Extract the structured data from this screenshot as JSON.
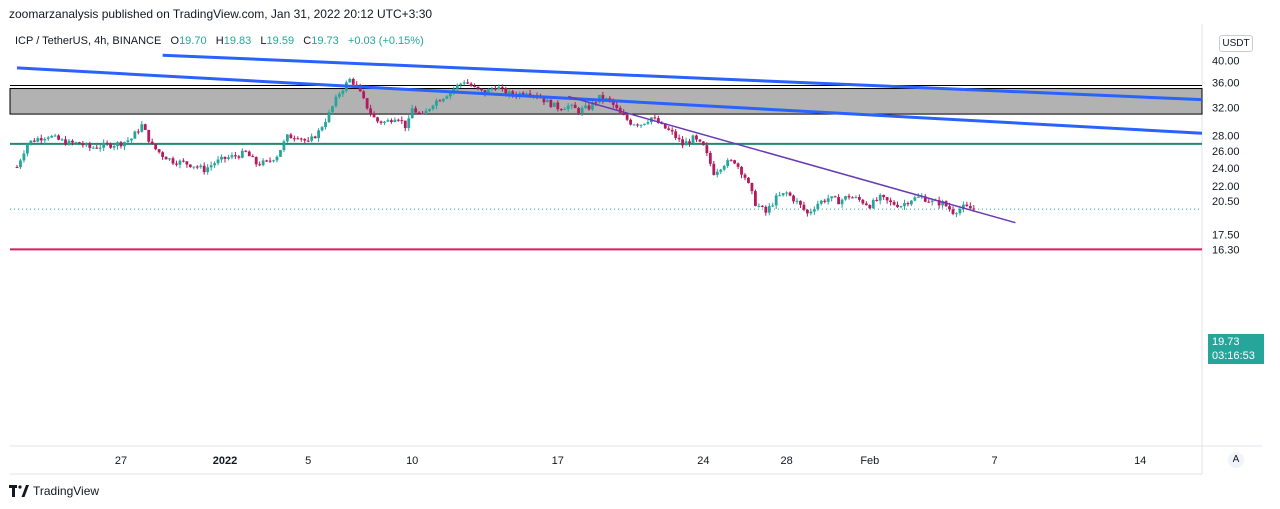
{
  "header": {
    "publisher": "zoomarzanalysis published on TradingView.com, Jan 31, 2022 20:12 UTC+3:30"
  },
  "legend": {
    "symbol": "ICP / TetherUS, 4h, BINANCE",
    "o_label": "O",
    "o": "19.70",
    "h_label": "H",
    "h": "19.83",
    "l_label": "L",
    "l": "19.59",
    "c_label": "C",
    "c": "19.73",
    "change": "+0.03 (+0.15%)"
  },
  "currency": "USDT",
  "last_price": {
    "price": "19.73",
    "countdown": "03:16:53"
  },
  "auto_scale": "A",
  "footer": {
    "brand": "TradingView"
  },
  "colors": {
    "up": "#26a69a",
    "down": "#b5195e",
    "channel": "#2962ff",
    "trendline": "#673ab7",
    "support": "#1f8a70",
    "bottom_line": "#d81b60",
    "zone_fill": "#b2b2b2"
  },
  "chart_data": {
    "type": "candlestick",
    "interval": "4h",
    "y_scale": "log",
    "ylim": [
      15.0,
      40.0
    ],
    "y_ticks": [
      "40.00",
      "36.00",
      "32.00",
      "28.00",
      "26.00",
      "24.00",
      "22.00",
      "20.50",
      "17.50",
      "16.30"
    ],
    "x_ticks": [
      {
        "label": "27",
        "date": "2021-12-27"
      },
      {
        "label": "2022",
        "date": "2022-01-01"
      },
      {
        "label": "5",
        "date": "2022-01-05"
      },
      {
        "label": "10",
        "date": "2022-01-10"
      },
      {
        "label": "17",
        "date": "2022-01-17"
      },
      {
        "label": "24",
        "date": "2022-01-24"
      },
      {
        "label": "28",
        "date": "2022-01-28"
      },
      {
        "label": "Feb",
        "date": "2022-02-01"
      },
      {
        "label": "7",
        "date": "2022-02-07"
      },
      {
        "label": "14",
        "date": "2022-02-14"
      }
    ],
    "series": [
      {
        "key": "close_path",
        "points": [
          [
            "2021-12-22 00:00",
            24.1
          ],
          [
            "2021-12-22 12:00",
            27.0
          ],
          [
            "2021-12-23 00:00",
            27.6
          ],
          [
            "2021-12-23 12:00",
            28.0
          ],
          [
            "2021-12-24 00:00",
            27.4
          ],
          [
            "2021-12-24 12:00",
            27.0
          ],
          [
            "2021-12-25 00:00",
            27.0
          ],
          [
            "2021-12-25 12:00",
            26.4
          ],
          [
            "2021-12-26 00:00",
            26.6
          ],
          [
            "2021-12-26 12:00",
            26.8
          ],
          [
            "2021-12-27 00:00",
            27.0
          ],
          [
            "2021-12-27 12:00",
            27.6
          ],
          [
            "2021-12-28 00:00",
            29.4
          ],
          [
            "2021-12-28 12:00",
            26.6
          ],
          [
            "2021-12-29 00:00",
            25.5
          ],
          [
            "2021-12-29 12:00",
            24.8
          ],
          [
            "2021-12-30 00:00",
            24.6
          ],
          [
            "2021-12-30 12:00",
            24.3
          ],
          [
            "2021-12-31 00:00",
            23.8
          ],
          [
            "2021-12-31 12:00",
            24.6
          ],
          [
            "2022-01-01 00:00",
            25.1
          ],
          [
            "2022-01-01 12:00",
            25.4
          ],
          [
            "2022-01-02 00:00",
            25.8
          ],
          [
            "2022-01-02 12:00",
            24.5
          ],
          [
            "2022-01-03 00:00",
            24.6
          ],
          [
            "2022-01-03 12:00",
            25.5
          ],
          [
            "2022-01-04 00:00",
            27.8
          ],
          [
            "2022-01-04 12:00",
            28.0
          ],
          [
            "2022-01-05 00:00",
            27.0
          ],
          [
            "2022-01-05 12:00",
            28.5
          ],
          [
            "2022-01-06 00:00",
            31.0
          ],
          [
            "2022-01-06 12:00",
            34.3
          ],
          [
            "2022-01-07 00:00",
            36.5
          ],
          [
            "2022-01-07 06:00",
            35.8
          ],
          [
            "2022-01-07 18:00",
            32.5
          ],
          [
            "2022-01-08 06:00",
            30.0
          ],
          [
            "2022-01-08 18:00",
            29.8
          ],
          [
            "2022-01-09 06:00",
            30.8
          ],
          [
            "2022-01-09 18:00",
            29.0
          ],
          [
            "2022-01-10 00:00",
            31.8
          ],
          [
            "2022-01-10 12:00",
            30.6
          ],
          [
            "2022-01-11 00:00",
            32.7
          ],
          [
            "2022-01-11 12:00",
            33.7
          ],
          [
            "2022-01-12 00:00",
            35.0
          ],
          [
            "2022-01-12 12:00",
            36.3
          ],
          [
            "2022-01-13 00:00",
            35.0
          ],
          [
            "2022-01-13 12:00",
            34.2
          ],
          [
            "2022-01-14 00:00",
            35.4
          ],
          [
            "2022-01-14 12:00",
            34.2
          ],
          [
            "2022-01-15 00:00",
            34.0
          ],
          [
            "2022-01-15 12:00",
            34.6
          ],
          [
            "2022-01-16 00:00",
            33.9
          ],
          [
            "2022-01-16 12:00",
            32.8
          ],
          [
            "2022-01-17 00:00",
            32.0
          ],
          [
            "2022-01-17 12:00",
            32.2
          ],
          [
            "2022-01-18 00:00",
            31.5
          ],
          [
            "2022-01-18 12:00",
            32.0
          ],
          [
            "2022-01-19 00:00",
            33.5
          ],
          [
            "2022-01-19 12:00",
            33.0
          ],
          [
            "2022-01-20 00:00",
            31.0
          ],
          [
            "2022-01-20 12:00",
            29.8
          ],
          [
            "2022-01-21 00:00",
            29.6
          ],
          [
            "2022-01-21 12:00",
            30.5
          ],
          [
            "2022-01-22 00:00",
            29.3
          ],
          [
            "2022-01-22 12:00",
            28.3
          ],
          [
            "2022-01-23 00:00",
            26.8
          ],
          [
            "2022-01-23 12:00",
            27.6
          ],
          [
            "2022-01-24 00:00",
            26.5
          ],
          [
            "2022-01-24 12:00",
            23.5
          ],
          [
            "2022-01-25 00:00",
            24.5
          ],
          [
            "2022-01-25 12:00",
            24.8
          ],
          [
            "2022-01-26 00:00",
            23.0
          ],
          [
            "2022-01-26 12:00",
            20.3
          ],
          [
            "2022-01-27 00:00",
            19.4
          ],
          [
            "2022-01-27 12:00",
            20.8
          ],
          [
            "2022-01-28 00:00",
            21.3
          ],
          [
            "2022-01-28 12:00",
            20.4
          ],
          [
            "2022-01-29 00:00",
            19.3
          ],
          [
            "2022-01-29 12:00",
            20.3
          ],
          [
            "2022-01-30 00:00",
            20.8
          ],
          [
            "2022-01-30 12:00",
            20.5
          ],
          [
            "2022-01-31 00:00",
            21.0
          ],
          [
            "2022-01-31 12:00",
            20.6
          ],
          [
            "2022-02-01 00:00",
            20.1
          ],
          [
            "2022-02-01 12:00",
            20.8
          ],
          [
            "2022-02-02 00:00",
            20.3
          ],
          [
            "2022-02-02 12:00",
            20.1
          ],
          [
            "2022-02-03 00:00",
            20.7
          ],
          [
            "2022-02-03 12:00",
            20.9
          ],
          [
            "2022-02-04 00:00",
            20.4
          ],
          [
            "2022-02-04 12:00",
            20.3
          ],
          [
            "2022-02-05 00:00",
            19.5
          ],
          [
            "2022-02-05 12:00",
            19.9
          ],
          [
            "2022-02-06 00:00",
            19.73
          ]
        ]
      }
    ],
    "zone": {
      "low": 31.0,
      "high": 35.0
    },
    "horizontal_lines": [
      {
        "key": "support",
        "price": 26.9
      },
      {
        "key": "bottom",
        "price": 16.3
      }
    ],
    "trend_lines": [
      {
        "key": "channel_upper",
        "from": [
          "2021-12-29 00:00",
          41.0
        ],
        "to": [
          "2022-02-17 00:00",
          33.2
        ]
      },
      {
        "key": "channel_lower",
        "from": [
          "2021-12-22 00:00",
          38.6
        ],
        "to": [
          "2022-02-17 00:00",
          28.3
        ]
      },
      {
        "key": "descending",
        "from": [
          "2022-01-17 12:00",
          33.7
        ],
        "to": [
          "2022-02-08 00:00",
          18.5
        ]
      }
    ],
    "last_price_line": 19.73
  }
}
